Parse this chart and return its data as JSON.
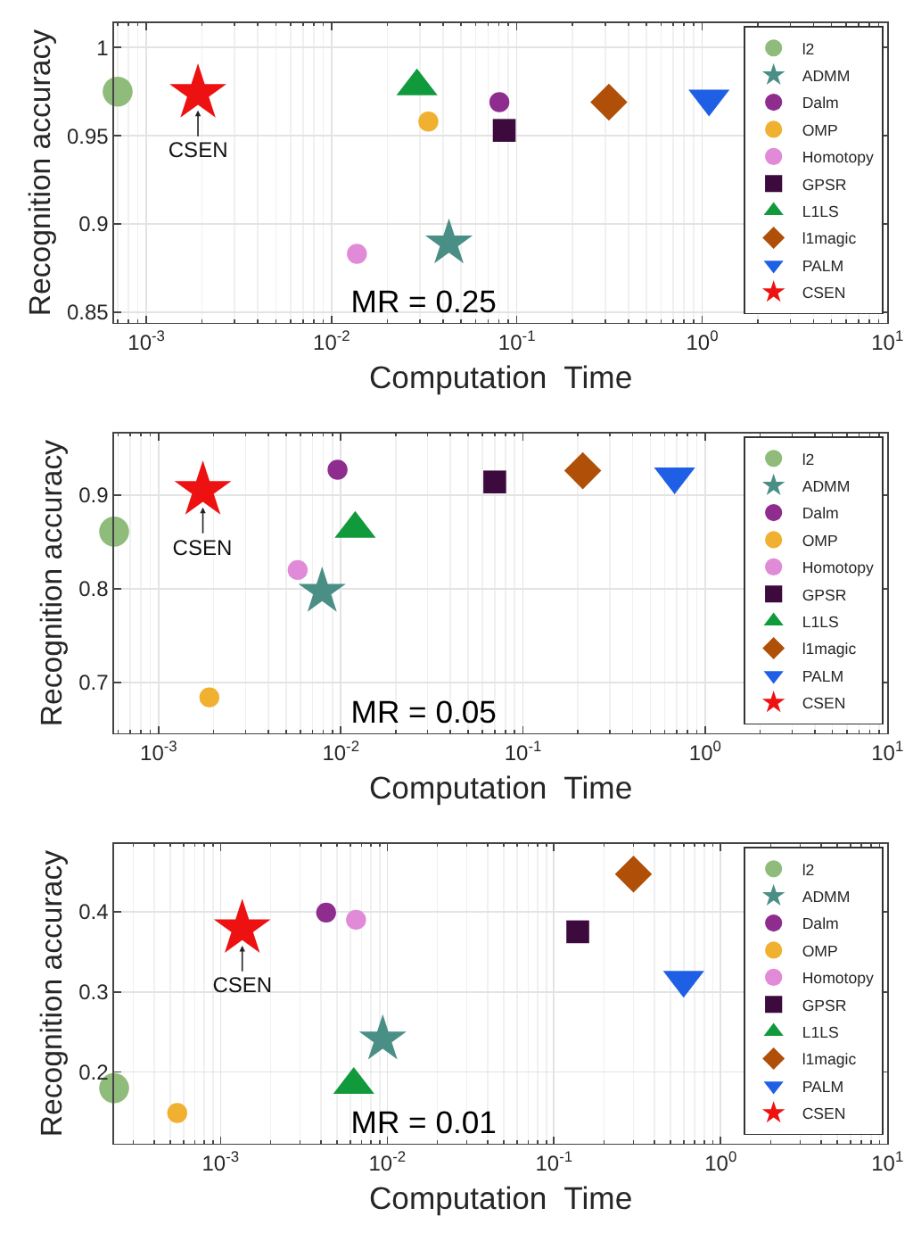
{
  "chart_data": [
    {
      "type": "scatter",
      "xlabel": "Computation  Time",
      "ylabel": "Recognition accuracy",
      "log": "x",
      "grid": true,
      "legend": "top right",
      "xlim": [
        0.00067,
        10
      ],
      "xticks": [
        {
          "value": 0.001,
          "label": "10$^{-3}$"
        },
        {
          "value": 0.01,
          "label": "10$^{-2}$"
        },
        {
          "value": 0.1,
          "label": "10$^{-1}$"
        },
        {
          "value": 1,
          "label": "10$^{0}$"
        },
        {
          "value": 10,
          "label": "10$^{1}$"
        }
      ],
      "ylim": [
        0.844,
        1.014
      ],
      "yticks": [
        0.85,
        0.9,
        0.95,
        1
      ],
      "annotations": [
        "MR = 0.25",
        {
          "text": "CSEN",
          "x": 0.0019,
          "y": 0.974
        }
      ],
      "series": [
        {
          "name": "l2",
          "color": "#8fbc7a",
          "marker": "circle",
          "x": [
            0.0007
          ],
          "values": [
            0.975
          ]
        },
        {
          "name": "ADMM",
          "color": "#4a8f86",
          "marker": "star",
          "x": [
            0.043
          ],
          "values": [
            0.889
          ]
        },
        {
          "name": "Dalm",
          "color": "#8e2d8e",
          "marker": "circle",
          "x": [
            0.0805
          ],
          "values": [
            0.969
          ]
        },
        {
          "name": "OMP",
          "color": "#f0b030",
          "marker": "circle",
          "x": [
            0.0333
          ],
          "values": [
            0.958
          ]
        },
        {
          "name": "Homotopy",
          "color": "#e08ad8",
          "marker": "circle",
          "x": [
            0.0137
          ],
          "values": [
            0.883
          ]
        },
        {
          "name": "GPSR",
          "color": "#3d0a3d",
          "marker": "square",
          "x": [
            0.0855
          ],
          "values": [
            0.953
          ]
        },
        {
          "name": "L1LS",
          "color": "#119a3c",
          "marker": "triangle",
          "x": [
            0.0289
          ],
          "values": [
            0.978
          ]
        },
        {
          "name": "l1magic",
          "color": "#b04f07",
          "marker": "diamond",
          "x": [
            0.314
          ],
          "values": [
            0.969
          ]
        },
        {
          "name": "PALM",
          "color": "#1f5fe6",
          "marker": "triangle-down",
          "x": [
            1.09
          ],
          "values": [
            0.971
          ]
        },
        {
          "name": "CSEN",
          "color": "#ee1111",
          "marker": "star",
          "x": [
            0.0019
          ],
          "values": [
            0.974
          ]
        }
      ]
    },
    {
      "type": "scatter",
      "xlabel": "Computation  Time",
      "ylabel": "Recognition accuracy",
      "log": "x",
      "grid": true,
      "legend": "top right",
      "xlim": [
        0.00057,
        10
      ],
      "xticks": [
        {
          "value": 0.001,
          "label": "10$^{-3}$"
        },
        {
          "value": 0.01,
          "label": "10$^{-2}$"
        },
        {
          "value": 0.1,
          "label": "10$^{-1}$"
        },
        {
          "value": 1,
          "label": "10$^{0}$"
        },
        {
          "value": 10,
          "label": "10$^{1}$"
        }
      ],
      "ylim": [
        0.646,
        0.966
      ],
      "yticks": [
        0.7,
        0.8,
        0.9
      ],
      "annotations": [
        "MR = 0.05",
        {
          "text": "CSEN",
          "x": 0.00175,
          "y": 0.905
        }
      ],
      "series": [
        {
          "name": "l2",
          "color": "#8fbc7a",
          "marker": "circle",
          "x": [
            0.00057
          ],
          "values": [
            0.861
          ]
        },
        {
          "name": "ADMM",
          "color": "#4a8f86",
          "marker": "star",
          "x": [
            0.0079
          ],
          "values": [
            0.797
          ]
        },
        {
          "name": "Dalm",
          "color": "#8e2d8e",
          "marker": "circle",
          "x": [
            0.0096
          ],
          "values": [
            0.927
          ]
        },
        {
          "name": "OMP",
          "color": "#f0b030",
          "marker": "circle",
          "x": [
            0.0019
          ],
          "values": [
            0.684
          ]
        },
        {
          "name": "Homotopy",
          "color": "#e08ad8",
          "marker": "circle",
          "x": [
            0.0058
          ],
          "values": [
            0.82
          ]
        },
        {
          "name": "GPSR",
          "color": "#3d0a3d",
          "marker": "square",
          "x": [
            0.07
          ],
          "values": [
            0.914
          ]
        },
        {
          "name": "L1LS",
          "color": "#119a3c",
          "marker": "triangle",
          "x": [
            0.012
          ],
          "values": [
            0.864
          ]
        },
        {
          "name": "l1magic",
          "color": "#b04f07",
          "marker": "diamond",
          "x": [
            0.213
          ],
          "values": [
            0.926
          ]
        },
        {
          "name": "PALM",
          "color": "#1f5fe6",
          "marker": "triangle-down",
          "x": [
            0.68
          ],
          "values": [
            0.92
          ]
        },
        {
          "name": "CSEN",
          "color": "#ee1111",
          "marker": "star",
          "x": [
            0.00175
          ],
          "values": [
            0.905
          ]
        }
      ]
    },
    {
      "type": "scatter",
      "xlabel": "Computation  Time",
      "ylabel": "Recognition accuracy",
      "log": "x",
      "grid": true,
      "legend": "top right",
      "xlim": [
        0.00023,
        10
      ],
      "xticks": [
        {
          "value": 0.001,
          "label": "10$^{-3}$"
        },
        {
          "value": 0.01,
          "label": "10$^{-2}$"
        },
        {
          "value": 0.1,
          "label": "10$^{-1}$"
        },
        {
          "value": 1,
          "label": "10$^{0}$"
        },
        {
          "value": 10,
          "label": "10$^{1}$"
        }
      ],
      "ylim": [
        0.111,
        0.485
      ],
      "yticks": [
        0.2,
        0.3,
        0.4
      ],
      "annotations": [
        "MR = 0.01",
        {
          "text": "CSEN",
          "x": 0.00135,
          "y": 0.379
        }
      ],
      "series": [
        {
          "name": "l2",
          "color": "#8fbc7a",
          "marker": "circle",
          "x": [
            0.00023
          ],
          "values": [
            0.18
          ]
        },
        {
          "name": "ADMM",
          "color": "#4a8f86",
          "marker": "star",
          "x": [
            0.0094
          ],
          "values": [
            0.241
          ]
        },
        {
          "name": "Dalm",
          "color": "#8e2d8e",
          "marker": "circle",
          "x": [
            0.0043
          ],
          "values": [
            0.399
          ]
        },
        {
          "name": "OMP",
          "color": "#f0b030",
          "marker": "circle",
          "x": [
            0.00055
          ],
          "values": [
            0.149
          ]
        },
        {
          "name": "Homotopy",
          "color": "#e08ad8",
          "marker": "circle",
          "x": [
            0.0065
          ],
          "values": [
            0.39
          ]
        },
        {
          "name": "GPSR",
          "color": "#3d0a3d",
          "marker": "square",
          "x": [
            0.139
          ],
          "values": [
            0.375
          ]
        },
        {
          "name": "L1LS",
          "color": "#119a3c",
          "marker": "triangle",
          "x": [
            0.0063
          ],
          "values": [
            0.184
          ]
        },
        {
          "name": "l1magic",
          "color": "#b04f07",
          "marker": "diamond",
          "x": [
            0.3
          ],
          "values": [
            0.447
          ]
        },
        {
          "name": "PALM",
          "color": "#1f5fe6",
          "marker": "triangle-down",
          "x": [
            0.6
          ],
          "values": [
            0.315
          ]
        },
        {
          "name": "CSEN",
          "color": "#ee1111",
          "marker": "star",
          "x": [
            0.00135
          ],
          "values": [
            0.379
          ]
        }
      ]
    }
  ]
}
